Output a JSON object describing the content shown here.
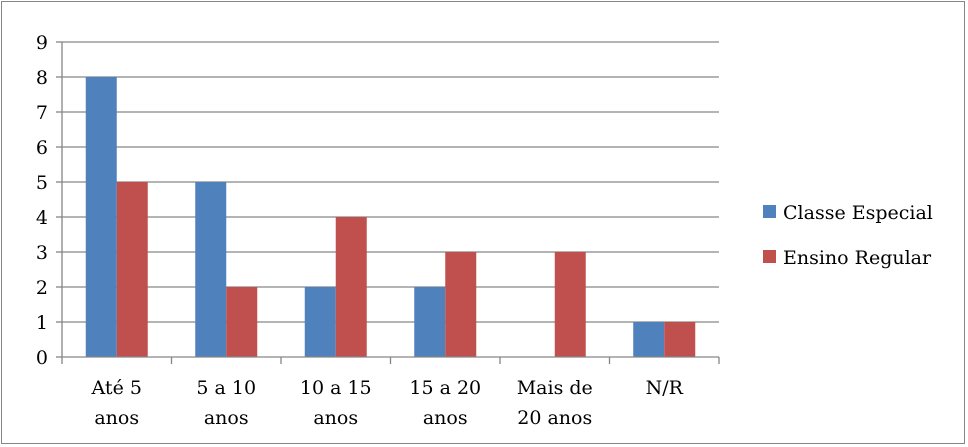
{
  "chart_data": {
    "type": "bar",
    "categories": [
      [
        "Até 5",
        "anos"
      ],
      [
        "5 a 10",
        "anos"
      ],
      [
        "10 a 15",
        "anos"
      ],
      [
        "15 a 20",
        "anos"
      ],
      [
        "Mais de",
        "20 anos"
      ],
      [
        "N/R"
      ]
    ],
    "series": [
      {
        "name": "Classe Especial",
        "color": "#4F81BD",
        "values": [
          8,
          5,
          2,
          2,
          0,
          1
        ]
      },
      {
        "name": "Ensino Regular",
        "color": "#C0504D",
        "values": [
          5,
          2,
          4,
          3,
          3,
          1
        ]
      }
    ],
    "ylim": [
      0,
      9
    ],
    "yticks": [
      "0",
      "1",
      "2",
      "3",
      "4",
      "5",
      "6",
      "7",
      "8",
      "9"
    ],
    "grid": true,
    "legend_position": "right",
    "title": "",
    "xlabel": "",
    "ylabel": ""
  }
}
